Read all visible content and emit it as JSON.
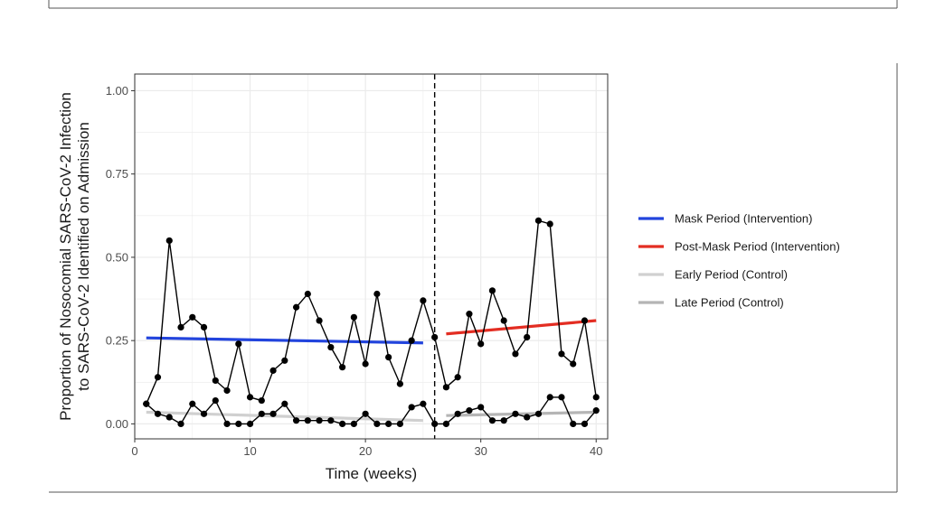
{
  "chart_data": {
    "type": "line",
    "xlabel": "Time (weeks)",
    "ylabel_lines": [
      "Proportion of Nosocomial SARS-CoV-2 Infection",
      "to SARS-CoV-2 Identified on Admission"
    ],
    "xlim": [
      0,
      41
    ],
    "ylim": [
      -0.045,
      1.05
    ],
    "x_ticks": [
      0,
      10,
      20,
      30,
      40
    ],
    "y_ticks": [
      0,
      0.25,
      0.5,
      0.75,
      1.0
    ],
    "x_tick_labels": [
      "0",
      "10",
      "20",
      "30",
      "40"
    ],
    "y_tick_labels": [
      "0.00",
      "0.25",
      "0.50",
      "0.75",
      "1.00"
    ],
    "grid": true,
    "legend_position": "right",
    "vline_x": 26,
    "colors": {
      "data": "#000000",
      "mask": "#2244dd",
      "post_mask": "#e32d22",
      "early": "#d0d0d0",
      "late": "#b5b5b5",
      "grid": "#ebebeb",
      "panel_border": "#333333"
    },
    "series": [
      {
        "name_key": "intervention",
        "x": [
          1,
          2,
          3,
          4,
          5,
          6,
          7,
          8,
          9,
          10,
          11,
          12,
          13,
          14,
          15,
          16,
          17,
          18,
          19,
          20,
          21,
          22,
          23,
          24,
          25,
          26,
          27,
          28,
          29,
          30,
          31,
          32,
          33,
          34,
          35,
          36,
          37,
          38,
          39,
          40
        ],
        "y": [
          0.06,
          0.14,
          0.55,
          0.29,
          0.32,
          0.29,
          0.13,
          0.1,
          0.24,
          0.08,
          0.07,
          0.16,
          0.19,
          0.35,
          0.39,
          0.31,
          0.23,
          0.17,
          0.32,
          0.18,
          0.39,
          0.2,
          0.12,
          0.25,
          0.37,
          0.26,
          0.11,
          0.14,
          0.33,
          0.24,
          0.4,
          0.31,
          0.21,
          0.26,
          0.61,
          0.6,
          0.21,
          0.18,
          0.31,
          0.08
        ]
      },
      {
        "name_key": "control",
        "x": [
          1,
          2,
          3,
          4,
          5,
          6,
          7,
          8,
          9,
          10,
          11,
          12,
          13,
          14,
          15,
          16,
          17,
          18,
          19,
          20,
          21,
          22,
          23,
          24,
          25,
          26,
          27,
          28,
          29,
          30,
          31,
          32,
          33,
          34,
          35,
          36,
          37,
          38,
          39,
          40
        ],
        "y": [
          0.06,
          0.03,
          0.02,
          0.0,
          0.06,
          0.03,
          0.07,
          0.0,
          0.0,
          0.0,
          0.03,
          0.03,
          0.06,
          0.01,
          0.01,
          0.01,
          0.01,
          0.0,
          0.0,
          0.03,
          0.0,
          0.0,
          0.0,
          0.05,
          0.06,
          0.0,
          0.0,
          0.03,
          0.04,
          0.05,
          0.01,
          0.01,
          0.03,
          0.02,
          0.03,
          0.08,
          0.08,
          0.0,
          0.0,
          0.04
        ]
      }
    ],
    "trend_lines": [
      {
        "name": "Mask Period (Intervention)",
        "color_key": "mask",
        "x": [
          1,
          25
        ],
        "y": [
          0.258,
          0.243
        ]
      },
      {
        "name": "Post-Mask Period (Intervention)",
        "color_key": "post_mask",
        "x": [
          27,
          40
        ],
        "y": [
          0.27,
          0.31
        ]
      },
      {
        "name": "Early Period (Control)",
        "color_key": "early",
        "x": [
          1,
          25
        ],
        "y": [
          0.035,
          0.01
        ]
      },
      {
        "name": "Late Period (Control)",
        "color_key": "late",
        "x": [
          27,
          40
        ],
        "y": [
          0.025,
          0.035
        ]
      }
    ]
  }
}
